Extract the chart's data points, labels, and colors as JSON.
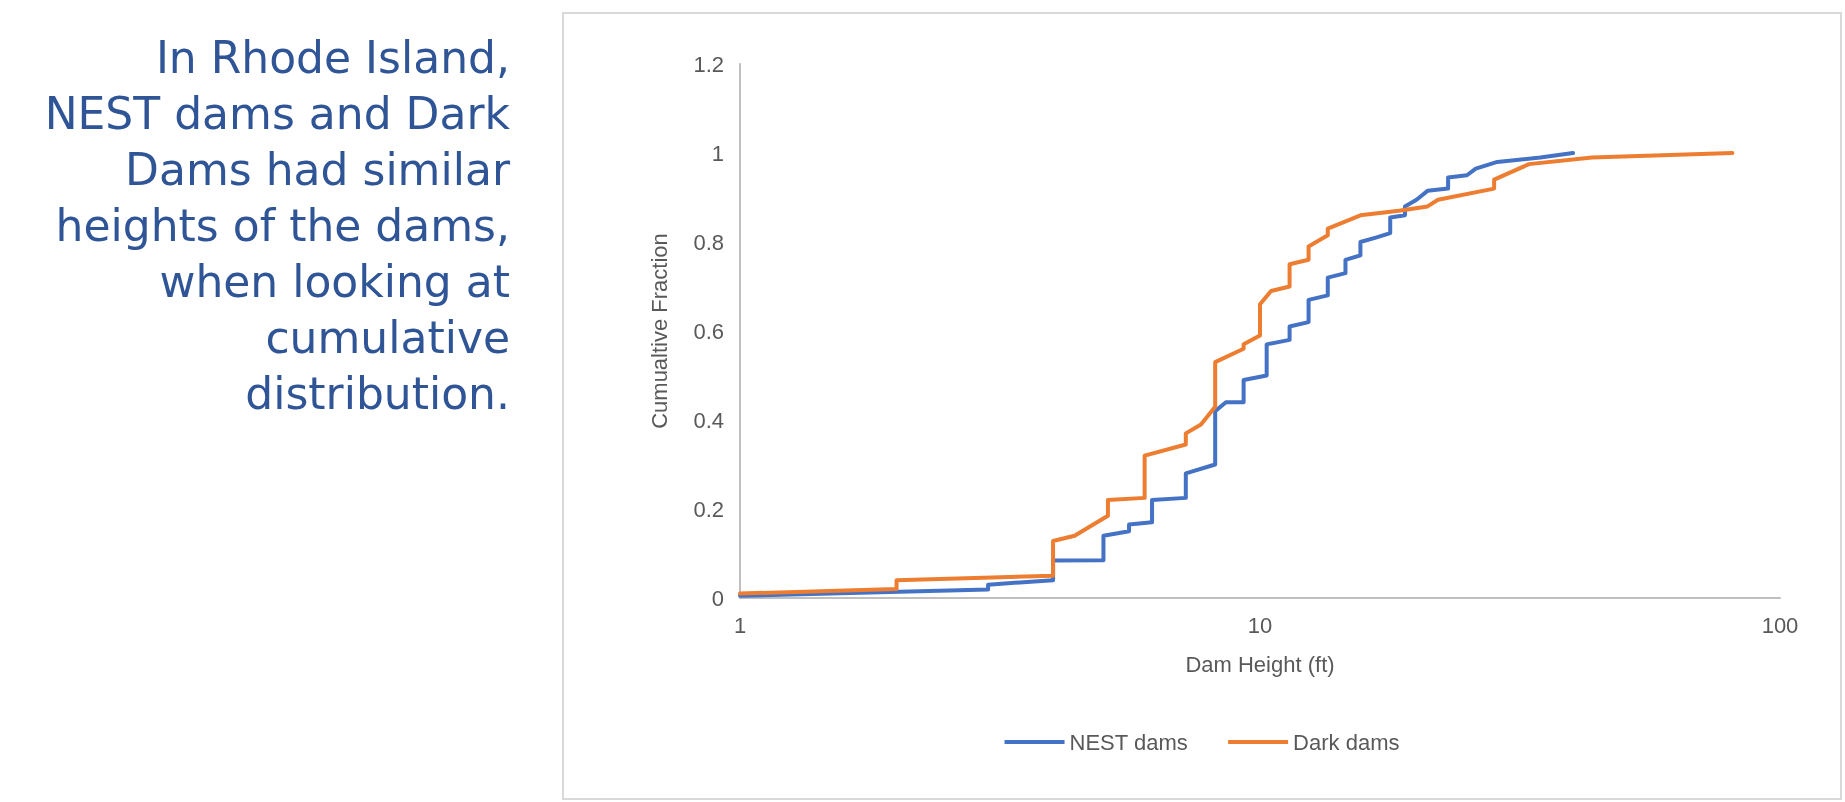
{
  "chart_data": {
    "type": "line",
    "title": "In Rhode Island, NEST dams and Dark Dams had similar heights of the dams, when looking at cumulative distribution.",
    "xlabel": "Dam Height (ft)",
    "ylabel": "Cumualtive Fraction",
    "log": "x",
    "xlim": [
      1,
      100
    ],
    "xticks": [
      1,
      10,
      100
    ],
    "ylim": [
      0,
      1.2
    ],
    "yticks": [
      0,
      0.2,
      0.4,
      0.6,
      0.8,
      1,
      1.2
    ],
    "grid": false,
    "legend": "bottom",
    "marker": "none",
    "line_style": "solid",
    "series": [
      {
        "name": "NEST dams",
        "color": "#4472c4",
        "x": [
          1,
          3,
          3,
          4,
          4,
          5,
          5,
          5.6,
          5.6,
          6.2,
          6.2,
          7.2,
          7.2,
          8.2,
          8.2,
          8.6,
          9.3,
          9.3,
          10.3,
          10.3,
          11.4,
          11.4,
          12.4,
          12.4,
          13.5,
          13.5,
          14.6,
          14.6,
          15.6,
          15.6,
          16.7,
          17.8,
          17.8,
          19,
          19,
          20,
          21,
          23,
          23,
          25,
          26,
          28.6,
          34.6,
          40
        ],
        "values": [
          0.005,
          0.019,
          0.03,
          0.04,
          0.084,
          0.085,
          0.14,
          0.15,
          0.165,
          0.17,
          0.22,
          0.225,
          0.28,
          0.3,
          0.42,
          0.44,
          0.44,
          0.49,
          0.5,
          0.57,
          0.58,
          0.61,
          0.62,
          0.67,
          0.68,
          0.72,
          0.73,
          0.76,
          0.77,
          0.8,
          0.81,
          0.82,
          0.855,
          0.86,
          0.88,
          0.895,
          0.915,
          0.92,
          0.945,
          0.95,
          0.965,
          0.98,
          0.99,
          1.0
        ]
      },
      {
        "name": "Dark dams",
        "color": "#ed7d31",
        "x": [
          1,
          2,
          2,
          4,
          4,
          4.4,
          5.1,
          5.1,
          6,
          6,
          7.2,
          7.2,
          7.7,
          8.2,
          8.2,
          9.3,
          9.3,
          10,
          10,
          10.5,
          11.4,
          11.4,
          12.4,
          12.4,
          13.5,
          13.5,
          15.6,
          18.5,
          21,
          22,
          28.2,
          28.2,
          32.9,
          43.5,
          81
        ],
        "values": [
          0.01,
          0.02,
          0.04,
          0.05,
          0.128,
          0.14,
          0.185,
          0.22,
          0.225,
          0.32,
          0.345,
          0.37,
          0.39,
          0.43,
          0.53,
          0.56,
          0.57,
          0.59,
          0.66,
          0.69,
          0.7,
          0.75,
          0.76,
          0.79,
          0.815,
          0.83,
          0.86,
          0.87,
          0.88,
          0.895,
          0.92,
          0.94,
          0.975,
          0.99,
          1.0
        ]
      }
    ]
  }
}
